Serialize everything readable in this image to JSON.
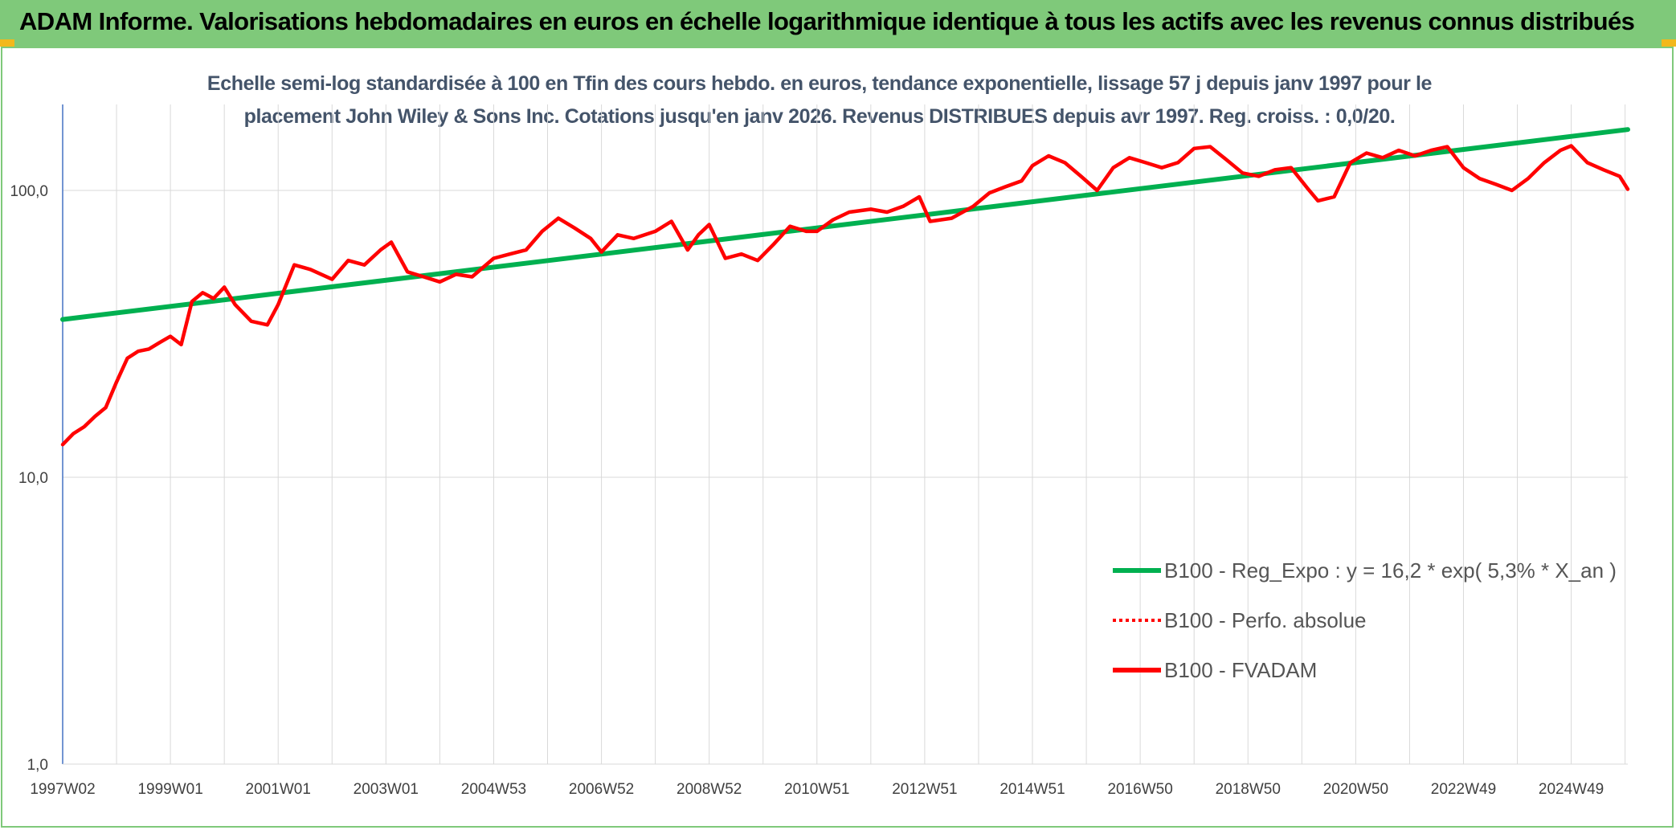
{
  "header": {
    "title": "ADAM Informe. Valorisations hebdomadaires en euros en échelle logarithmique identique à tous les actifs avec les revenus connus distribués"
  },
  "colors": {
    "header_bg": "#7fc97a",
    "regression": "#00b050",
    "fvadam": "#ff0000",
    "perfo": "#ff0000",
    "accent_corners": "#f2b81c"
  },
  "chart_data": {
    "type": "line",
    "title_line1": "Echelle semi-log standardisée à 100 en Tfin des cours hebdo. en euros, tendance exponentielle, lissage 57 j depuis janv 1997 pour le",
    "title_line2": "placement John Wiley & Sons Inc. Cotations jusqu'en janv 2026. Revenus DISTRIBUES depuis avr 1997. Reg. croiss. : 0,0/20.",
    "y_scale": "log",
    "ylim": [
      1,
      200
    ],
    "y_ticks": [
      {
        "value": 1,
        "label": "1,0"
      },
      {
        "value": 10,
        "label": "10,0"
      },
      {
        "value": 100,
        "label": "100,0"
      }
    ],
    "xlim": [
      1997.0,
      2026.05
    ],
    "x_ticks": [
      {
        "value": 1997.0,
        "label": "1997W02"
      },
      {
        "value": 1999.0,
        "label": "1999W01"
      },
      {
        "value": 2001.0,
        "label": "2001W01"
      },
      {
        "value": 2003.0,
        "label": "2003W01"
      },
      {
        "value": 2005.0,
        "label": "2004W53"
      },
      {
        "value": 2007.0,
        "label": "2006W52"
      },
      {
        "value": 2009.0,
        "label": "2008W52"
      },
      {
        "value": 2011.0,
        "label": "2010W51"
      },
      {
        "value": 2013.0,
        "label": "2012W51"
      },
      {
        "value": 2015.0,
        "label": "2014W51"
      },
      {
        "value": 2017.0,
        "label": "2016W50"
      },
      {
        "value": 2019.0,
        "label": "2018W50"
      },
      {
        "value": 2021.0,
        "label": "2020W50"
      },
      {
        "value": 2023.0,
        "label": "2022W49"
      },
      {
        "value": 2025.0,
        "label": "2024W49"
      }
    ],
    "grid": "vertical and horizontal",
    "legend_position": "lower-right",
    "series": [
      {
        "name": "B100 - Reg_Expo : y = 16,2 * exp( 5,3% *  X_an )",
        "style": "solid-thick",
        "color": "#00b050",
        "x": [
          1997.0,
          2026.05
        ],
        "y": [
          35.5,
          163
        ]
      },
      {
        "name": "B100 - Perfo. absolue",
        "style": "dotted",
        "color": "#ff0000",
        "x": [],
        "y": []
      },
      {
        "name": "B100 - FVADAM",
        "style": "solid-thick",
        "color": "#ff0000",
        "x": [
          1997.0,
          1997.2,
          1997.4,
          1997.6,
          1997.8,
          1998.0,
          1998.2,
          1998.4,
          1998.6,
          1998.8,
          1999.0,
          1999.2,
          1999.4,
          1999.6,
          1999.8,
          2000.0,
          2000.2,
          2000.5,
          2000.8,
          2001.0,
          2001.3,
          2001.6,
          2002.0,
          2002.3,
          2002.6,
          2002.9,
          2003.1,
          2003.4,
          2003.7,
          2004.0,
          2004.3,
          2004.6,
          2005.0,
          2005.3,
          2005.6,
          2005.9,
          2006.2,
          2006.5,
          2006.8,
          2007.0,
          2007.3,
          2007.6,
          2008.0,
          2008.3,
          2008.6,
          2008.8,
          2009.0,
          2009.3,
          2009.6,
          2009.9,
          2010.2,
          2010.5,
          2010.8,
          2011.0,
          2011.3,
          2011.6,
          2012.0,
          2012.3,
          2012.6,
          2012.9,
          2013.1,
          2013.5,
          2013.9,
          2014.2,
          2014.5,
          2014.8,
          2015.0,
          2015.3,
          2015.6,
          2015.9,
          2016.2,
          2016.5,
          2016.8,
          2017.1,
          2017.4,
          2017.7,
          2018.0,
          2018.3,
          2018.6,
          2018.9,
          2019.2,
          2019.5,
          2019.8,
          2020.1,
          2020.3,
          2020.6,
          2020.9,
          2021.2,
          2021.5,
          2021.8,
          2022.1,
          2022.4,
          2022.7,
          2023.0,
          2023.3,
          2023.6,
          2023.9,
          2024.2,
          2024.5,
          2024.8,
          2025.0,
          2025.3,
          2025.6,
          2025.9,
          2026.05
        ],
        "y": [
          13.0,
          14.2,
          15.0,
          16.3,
          17.5,
          21.5,
          26.0,
          27.5,
          28.0,
          29.5,
          31.0,
          29.0,
          41.0,
          44.0,
          42.0,
          46.0,
          40.0,
          35.0,
          34.0,
          40.0,
          55.0,
          53.0,
          49.0,
          57.0,
          55.0,
          62.0,
          66.0,
          52.0,
          50.0,
          48.0,
          51.0,
          50.0,
          58.0,
          60.0,
          62.0,
          72.0,
          80.0,
          74.0,
          68.0,
          61.0,
          70.0,
          68.0,
          72.0,
          78.0,
          62.0,
          70.0,
          76.0,
          58.0,
          60.0,
          57.0,
          65.0,
          75.0,
          72.0,
          72.0,
          79.0,
          84.0,
          86.0,
          84.0,
          88.0,
          95.0,
          78.0,
          80.0,
          88.0,
          98.0,
          103.0,
          108.0,
          122.0,
          132.0,
          125.0,
          112.0,
          100.0,
          120.0,
          130.0,
          125.0,
          120.0,
          125.0,
          140.0,
          142.0,
          128.0,
          115.0,
          112.0,
          118.0,
          120.0,
          102.0,
          92.0,
          95.0,
          125.0,
          135.0,
          130.0,
          138.0,
          132.0,
          138.0,
          142.0,
          120.0,
          110.0,
          105.0,
          100.0,
          110.0,
          125.0,
          138.0,
          143.0,
          125.0,
          118.0,
          112.0,
          101.0
        ]
      }
    ]
  }
}
